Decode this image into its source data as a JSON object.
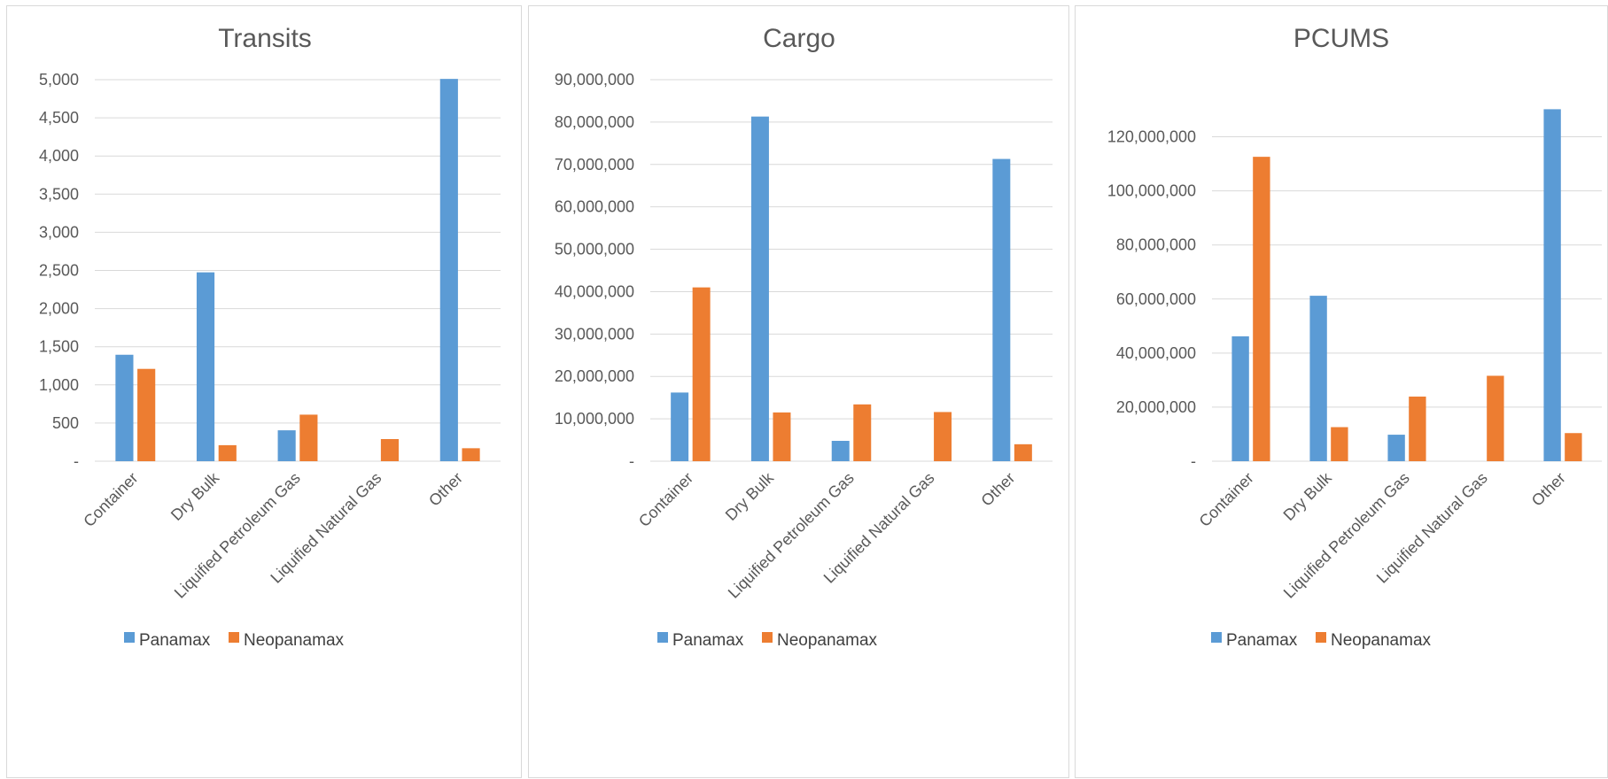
{
  "colors": {
    "panamax": "#5b9bd5",
    "neopanamax": "#ed7d31",
    "grid": "#d9d9d9",
    "text": "#595959"
  },
  "chart_data": [
    {
      "type": "bar",
      "title": "Transits",
      "categories": [
        "Container",
        "Dry Bulk",
        "Liquified Petroleum Gas",
        "Liquified Natural Gas",
        "Other"
      ],
      "series": [
        {
          "name": "Panamax",
          "values": [
            1395,
            2475,
            405,
            0,
            5010
          ]
        },
        {
          "name": "Neopanamax",
          "values": [
            1210,
            210,
            610,
            290,
            170
          ]
        }
      ],
      "ylim": [
        0,
        5000
      ],
      "yticks": [
        0,
        500,
        1000,
        1500,
        2000,
        2500,
        3000,
        3500,
        4000,
        4500,
        5000
      ],
      "ytick_labels": [
        "-",
        "500",
        "1,000",
        "1,500",
        "2,000",
        "2,500",
        "3,000",
        "3,500",
        "4,000",
        "4,500",
        "5,000"
      ],
      "grid": true,
      "legend": "bottom"
    },
    {
      "type": "bar",
      "title": "Cargo",
      "categories": [
        "Container",
        "Dry Bulk",
        "Liquified Petroleum Gas",
        "Liquified Natural Gas",
        "Other"
      ],
      "series": [
        {
          "name": "Panamax",
          "values": [
            16200000,
            81300000,
            4800000,
            0,
            71300000
          ]
        },
        {
          "name": "Neopanamax",
          "values": [
            41000000,
            11500000,
            13400000,
            11600000,
            4000000
          ]
        }
      ],
      "ylim": [
        0,
        90000000
      ],
      "yticks": [
        0,
        10000000,
        20000000,
        30000000,
        40000000,
        50000000,
        60000000,
        70000000,
        80000000,
        90000000
      ],
      "ytick_labels": [
        "-",
        "10,000,000",
        "20,000,000",
        "30,000,000",
        "40,000,000",
        "50,000,000",
        "60,000,000",
        "70,000,000",
        "80,000,000",
        "90,000,000"
      ],
      "grid": true,
      "legend": "bottom"
    },
    {
      "type": "bar",
      "title": "PCUMS",
      "categories": [
        "Container",
        "Dry Bulk",
        "Liquified Petroleum Gas",
        "Liquified Natural Gas",
        "Other"
      ],
      "series": [
        {
          "name": "Panamax",
          "values": [
            46200000,
            61200000,
            9800000,
            0,
            130200000
          ]
        },
        {
          "name": "Neopanamax",
          "values": [
            112600000,
            12600000,
            23900000,
            31600000,
            10400000
          ]
        }
      ],
      "ylim": [
        0,
        130000000
      ],
      "yticks": [
        0,
        20000000,
        40000000,
        60000000,
        80000000,
        100000000,
        120000000
      ],
      "ytick_labels": [
        "-",
        "20,000,000",
        "40,000,000",
        "60,000,000",
        "80,000,000",
        "100,000,000",
        "120,000,000"
      ],
      "grid": true,
      "legend": "bottom"
    }
  ]
}
